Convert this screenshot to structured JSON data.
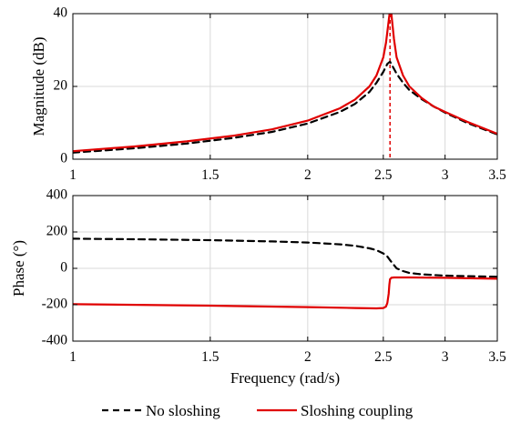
{
  "chart_data": [
    {
      "type": "line",
      "title": "",
      "xlabel": "",
      "ylabel": "Magnitude (dB)",
      "xscale": "log",
      "xlim": [
        1,
        3.5
      ],
      "ylim": [
        0,
        40
      ],
      "xticks": [
        1,
        1.5,
        2,
        2.5,
        3,
        3.5
      ],
      "xtick_labels": [
        "1",
        "1.5",
        "2",
        "2.5",
        "3",
        "3.5"
      ],
      "yticks": [
        0,
        20,
        40
      ],
      "ytick_labels": [
        "0",
        "20",
        "40"
      ],
      "grid": true,
      "series": [
        {
          "name": "No sloshing",
          "color": "#000000",
          "dash": "dashed",
          "x": [
            1.0,
            1.2,
            1.4,
            1.6,
            1.8,
            2.0,
            2.2,
            2.3,
            2.4,
            2.45,
            2.5,
            2.53,
            2.55,
            2.57,
            2.6,
            2.65,
            2.7,
            2.8,
            2.9,
            3.0,
            3.2,
            3.5
          ],
          "y": [
            1.8,
            3.0,
            4.3,
            5.8,
            7.5,
            9.8,
            13.0,
            15.2,
            18.5,
            21.0,
            24.0,
            26.2,
            26.8,
            25.5,
            23.5,
            21.0,
            19.0,
            16.5,
            14.5,
            12.8,
            10.0,
            6.8
          ]
        },
        {
          "name": "Sloshing coupling",
          "color": "#e00000",
          "dash": "solid",
          "x": [
            1.0,
            1.2,
            1.4,
            1.6,
            1.8,
            2.0,
            2.2,
            2.3,
            2.4,
            2.45,
            2.5,
            2.52,
            2.54,
            2.55,
            2.56,
            2.58,
            2.6,
            2.65,
            2.7,
            2.8,
            2.9,
            3.0,
            3.2,
            3.5
          ],
          "y": [
            2.2,
            3.5,
            4.9,
            6.4,
            8.2,
            10.6,
            14.0,
            16.4,
            20.0,
            23.0,
            28.0,
            32.0,
            38.0,
            41.0,
            40.0,
            33.0,
            28.0,
            23.0,
            20.0,
            16.8,
            14.5,
            13.0,
            10.3,
            7.0
          ]
        }
      ],
      "annotations": [
        {
          "type": "vline",
          "x": 2.55,
          "color": "#e00000",
          "dash": "dashed"
        }
      ]
    },
    {
      "type": "line",
      "title": "",
      "xlabel": "Frequency (rad/s)",
      "ylabel": "Phase (°)",
      "xscale": "log",
      "xlim": [
        1,
        3.5
      ],
      "ylim": [
        -400,
        400
      ],
      "xticks": [
        1,
        1.5,
        2,
        2.5,
        3,
        3.5
      ],
      "xtick_labels": [
        "1",
        "1.5",
        "2",
        "2.5",
        "3",
        "3.5"
      ],
      "yticks": [
        -400,
        -200,
        0,
        200,
        400
      ],
      "ytick_labels": [
        "-400",
        "-200",
        "0",
        "200",
        "400"
      ],
      "grid": true,
      "series": [
        {
          "name": "No sloshing",
          "color": "#000000",
          "dash": "dashed",
          "x": [
            1.0,
            1.2,
            1.5,
            1.8,
            2.0,
            2.2,
            2.3,
            2.4,
            2.45,
            2.5,
            2.53,
            2.55,
            2.58,
            2.6,
            2.65,
            2.7,
            2.8,
            3.0,
            3.2,
            3.5
          ],
          "y": [
            163,
            160,
            155,
            148,
            142,
            132,
            124,
            110,
            100,
            82,
            65,
            45,
            18,
            0,
            -15,
            -25,
            -33,
            -40,
            -43,
            -46
          ]
        },
        {
          "name": "Sloshing coupling",
          "color": "#e00000",
          "dash": "solid",
          "x": [
            1.0,
            1.5,
            2.0,
            2.3,
            2.45,
            2.5,
            2.52,
            2.53,
            2.54,
            2.545,
            2.55,
            2.56,
            2.58,
            2.6,
            2.7,
            3.0,
            3.5
          ],
          "y": [
            -197,
            -205,
            -213,
            -218,
            -220,
            -218,
            -210,
            -190,
            -140,
            -90,
            -60,
            -52,
            -50,
            -50,
            -50,
            -52,
            -57
          ]
        }
      ],
      "legend": {
        "placement": "bottom-outside",
        "entries": [
          "No sloshing",
          "Sloshing coupling"
        ]
      }
    }
  ]
}
